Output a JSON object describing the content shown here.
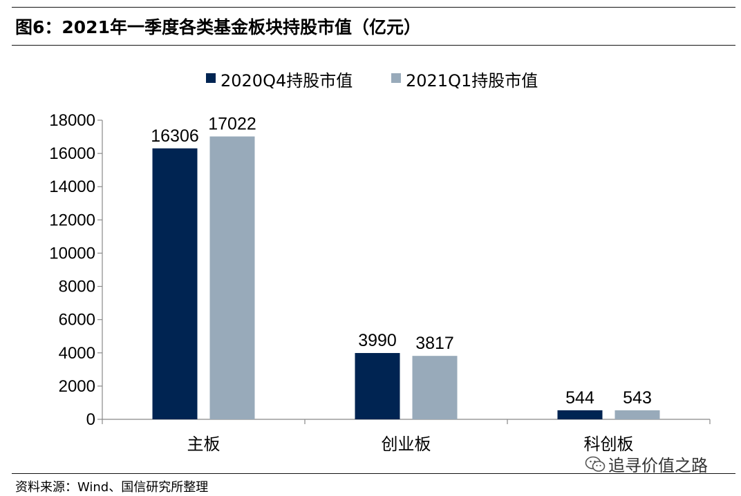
{
  "title": "图6：2021年一季度各类基金板块持股市值（亿元）",
  "source": "资料来源：Wind、国信研究所整理",
  "watermark": {
    "text": "追寻价值之路",
    "icon": "wechat-icon"
  },
  "colors": {
    "series_2020Q4": "#002452",
    "series_2021Q1": "#98aaba",
    "axis": "#888888"
  },
  "chart_data": {
    "type": "bar",
    "title": "",
    "xlabel": "",
    "ylabel": "",
    "categories": [
      "主板",
      "创业板",
      "科创板"
    ],
    "ylim": [
      0,
      18000
    ],
    "yticks": [
      0,
      2000,
      4000,
      6000,
      8000,
      10000,
      12000,
      14000,
      16000,
      18000
    ],
    "grid": false,
    "legend_position": "top-center",
    "series": [
      {
        "name": "2020Q4持股市值",
        "values": [
          16306,
          3990,
          544
        ]
      },
      {
        "name": "2021Q1持股市值",
        "values": [
          17022,
          3817,
          543
        ]
      }
    ]
  }
}
